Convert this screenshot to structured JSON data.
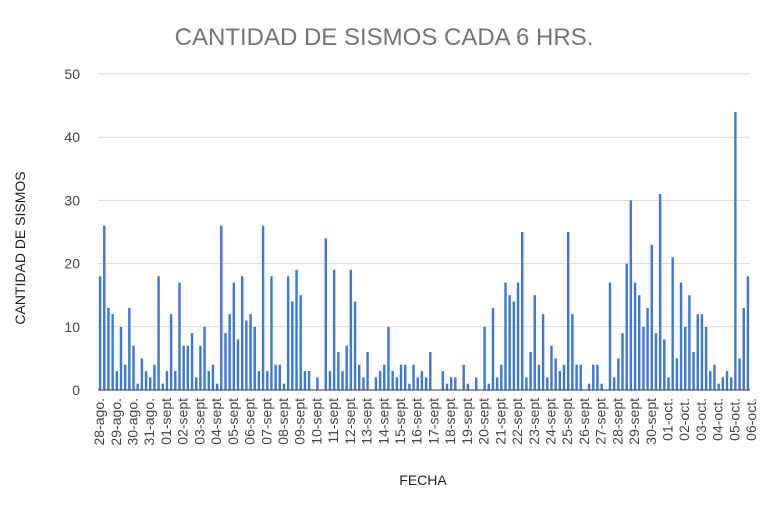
{
  "chart_data": {
    "type": "bar",
    "title": "CANTIDAD DE SISMOS CADA 6 HRS.",
    "xlabel": "FECHA",
    "ylabel": "CANTIDAD DE SISMOS",
    "ylim": [
      0,
      50
    ],
    "yticks": [
      0,
      10,
      20,
      30,
      40,
      50
    ],
    "grid": true,
    "legend": "none",
    "bar_color": "#3c78d8",
    "x_tick_labels": [
      "28-ago.",
      "29-ago.",
      "30-ago.",
      "31-ago.",
      "01-sept",
      "02-sept",
      "03-sept",
      "04-sept",
      "05-sept",
      "06-sept",
      "07-sept",
      "08-sept",
      "09-sept",
      "10-sept",
      "11-sept",
      "12-sept",
      "13-sept",
      "14-sept",
      "15-sept",
      "16-sept",
      "17-sept",
      "18-sept",
      "19-sept",
      "20-sept",
      "21-sept",
      "22-sept",
      "23-sept",
      "24-sept",
      "25-sept",
      "26-sept",
      "27-sept",
      "28-sept",
      "29-sept",
      "30-sept",
      "01-oct.",
      "02-oct.",
      "03-oct.",
      "04-oct.",
      "05-oct.",
      "06-oct."
    ],
    "values": [
      18,
      26,
      13,
      12,
      3,
      10,
      4,
      13,
      7,
      1,
      5,
      3,
      2,
      4,
      18,
      1,
      3,
      12,
      3,
      17,
      7,
      7,
      9,
      2,
      7,
      10,
      3,
      4,
      1,
      26,
      9,
      12,
      17,
      8,
      18,
      11,
      12,
      10,
      3,
      26,
      3,
      18,
      4,
      4,
      1,
      18,
      14,
      19,
      15,
      3,
      3,
      0,
      2,
      0,
      24,
      3,
      19,
      6,
      3,
      7,
      19,
      14,
      4,
      2,
      6,
      0,
      2,
      3,
      4,
      10,
      3,
      2,
      4,
      4,
      1,
      4,
      2,
      3,
      2,
      6,
      0,
      0,
      3,
      1,
      2,
      2,
      0,
      4,
      1,
      0,
      2,
      0,
      10,
      1,
      13,
      2,
      4,
      17,
      15,
      14,
      17,
      25,
      2,
      6,
      15,
      4,
      12,
      2,
      7,
      5,
      3,
      4,
      25,
      12,
      4,
      4,
      0,
      1,
      4,
      4,
      1,
      0,
      17,
      2,
      5,
      9,
      20,
      30,
      17,
      15,
      10,
      13,
      23,
      9,
      31,
      8,
      2,
      21,
      5,
      17,
      10,
      15,
      6,
      12,
      12,
      10,
      3,
      4,
      1,
      2,
      3,
      2,
      44,
      5,
      13,
      18
    ]
  }
}
